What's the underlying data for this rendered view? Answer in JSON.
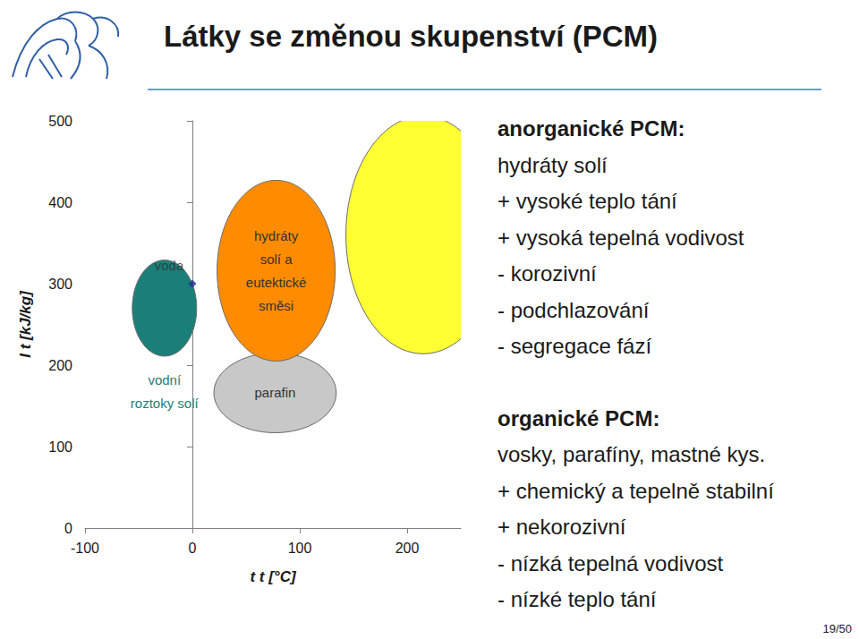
{
  "slide": {
    "title": "Látky se změnou skupenství (PCM)",
    "page": "19/50",
    "notes": [
      {
        "heading": "anorganické PCM:",
        "lines": [
          "hydráty solí",
          "+ vysoké teplo tání",
          "+ vysoká tepelná vodivost",
          "- korozivní",
          "- podchlazování",
          "- segregace fází"
        ]
      },
      {
        "heading": "organické PCM:",
        "lines": [
          "vosky, parafíny, mastné kys.",
          "+ chemický a tepelně stabilní",
          "+ nekorozivní",
          "- nízká tepelná vodivost",
          "- nízké teplo tání"
        ]
      }
    ]
  },
  "chart_data": {
    "type": "scatter",
    "xlabel": "t t [°C]",
    "ylabel": "I t [kJ/kg]",
    "xlim": [
      -100,
      250
    ],
    "xticks": [
      -100,
      0,
      100,
      200
    ],
    "ylim": [
      0,
      500
    ],
    "yticks": [
      0,
      100,
      200,
      300,
      400,
      500
    ],
    "grid": false,
    "series": [
      {
        "name": "vodní\nroztoky solí",
        "type": "ellipse",
        "color": "#1b7f79",
        "x": -26,
        "y": 270,
        "rx": 30,
        "ry": 59
      },
      {
        "type": "ellipse",
        "color": "#ffff33",
        "x": 215,
        "y": 360,
        "rx": 72,
        "ry": 146
      },
      {
        "name": "parafin",
        "type": "ellipse",
        "color": "#c8c8c8",
        "x": 77,
        "y": 166,
        "rx": 57,
        "ry": 49
      },
      {
        "name": "hydráty\nsolí a\neutektické\nsměsi",
        "type": "ellipse",
        "color": "#ff8c00",
        "x": 78,
        "y": 316,
        "rx": 55,
        "ry": 111
      },
      {
        "name": "voda",
        "type": "scatter",
        "marker": "diamond",
        "color": "#1f2f8f",
        "x": [
          0
        ],
        "y": [
          300
        ]
      }
    ]
  }
}
